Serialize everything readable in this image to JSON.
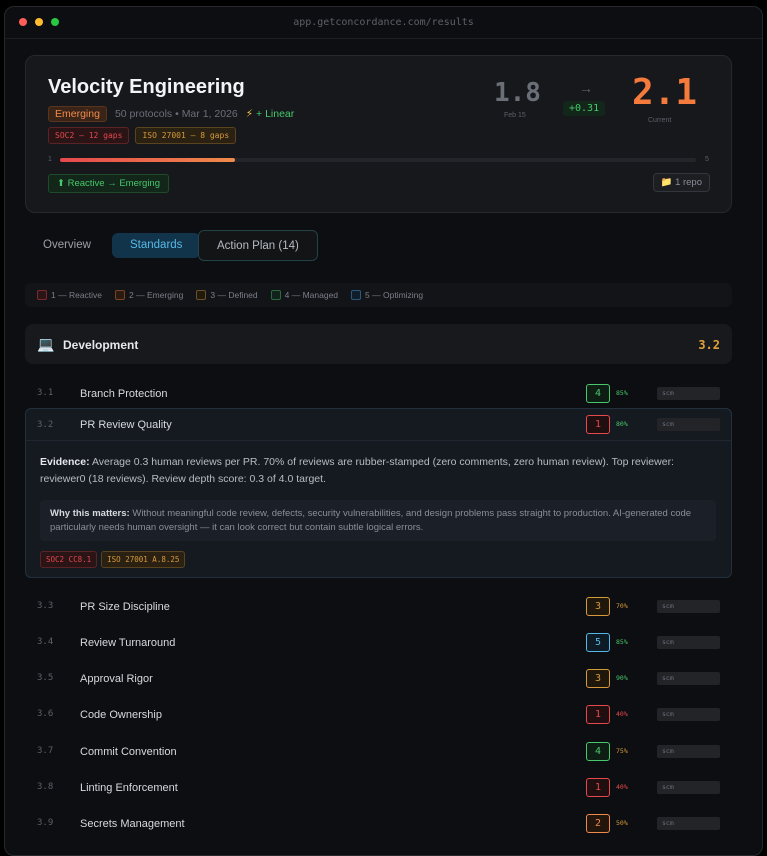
{
  "window": {
    "url": "app.getconcordance.com/results"
  },
  "hero": {
    "title": "Velocity Engineering",
    "level_badge": "Emerging",
    "protocols": "50 protocols",
    "date": "Mar 1, 2026",
    "integration": "+ Linear",
    "gaps": [
      "SOC2 — 12 gaps",
      "ISO 27001 — 8 gaps"
    ],
    "track_min": "1",
    "track_max": "5",
    "track_fill_fraction": 0.275,
    "trend": "⬆ Reactive → Emerging",
    "repo": "1 repo",
    "prev_score": "1.8",
    "prev_label": "Feb 15",
    "arrow": "→",
    "delta": "+0.31",
    "current_score": "2.1",
    "current_label": "Current"
  },
  "tabs": [
    {
      "label": "Overview"
    },
    {
      "label": "Standards"
    },
    {
      "label": "Action Plan (14)"
    }
  ],
  "legend": [
    "1 — Reactive",
    "2 — Emerging",
    "3 — Defined",
    "4 — Managed",
    "5 — Optimizing"
  ],
  "section": {
    "icon": "💻",
    "name": "Development",
    "score": "3.2"
  },
  "rows": [
    {
      "num": "3.1",
      "label": "Branch Protection",
      "level": "4",
      "pct": "85%",
      "tag": "scm"
    },
    {
      "num": "3.2",
      "label": "PR Review Quality",
      "level": "1",
      "pct": "80%",
      "tag": "scm"
    },
    {
      "num": "3.3",
      "label": "PR Size Discipline",
      "level": "3",
      "pct": "70%",
      "tag": "scm"
    },
    {
      "num": "3.4",
      "label": "Review Turnaround",
      "level": "5",
      "pct": "85%",
      "tag": "scm"
    },
    {
      "num": "3.5",
      "label": "Approval Rigor",
      "level": "3",
      "pct": "90%",
      "tag": "scm"
    },
    {
      "num": "3.6",
      "label": "Code Ownership",
      "level": "1",
      "pct": "40%",
      "tag": "scm"
    },
    {
      "num": "3.7",
      "label": "Commit Convention",
      "level": "4",
      "pct": "75%",
      "tag": "scm"
    },
    {
      "num": "3.8",
      "label": "Linting Enforcement",
      "level": "1",
      "pct": "40%",
      "tag": "scm"
    },
    {
      "num": "3.9",
      "label": "Secrets Management",
      "level": "2",
      "pct": "50%",
      "tag": "scm"
    }
  ],
  "detail": {
    "evidence_label": "Evidence:",
    "evidence_text": " Average 0.3 human reviews per PR. 70% of reviews are rubber-stamped (zero comments, zero human review). Top reviewer: reviewer0 (18 reviews). Review depth score: 0.3 of 4.0 target.",
    "why_label": "Why this matters:",
    "why_text": " Without meaningful code review, defects, security vulnerabilities, and design problems pass straight to production. AI-generated code particularly needs human oversight — it can look correct but contain subtle logical errors.",
    "controls": [
      "SOC2 CC8.1",
      "ISO 27001 A.8.25"
    ]
  }
}
